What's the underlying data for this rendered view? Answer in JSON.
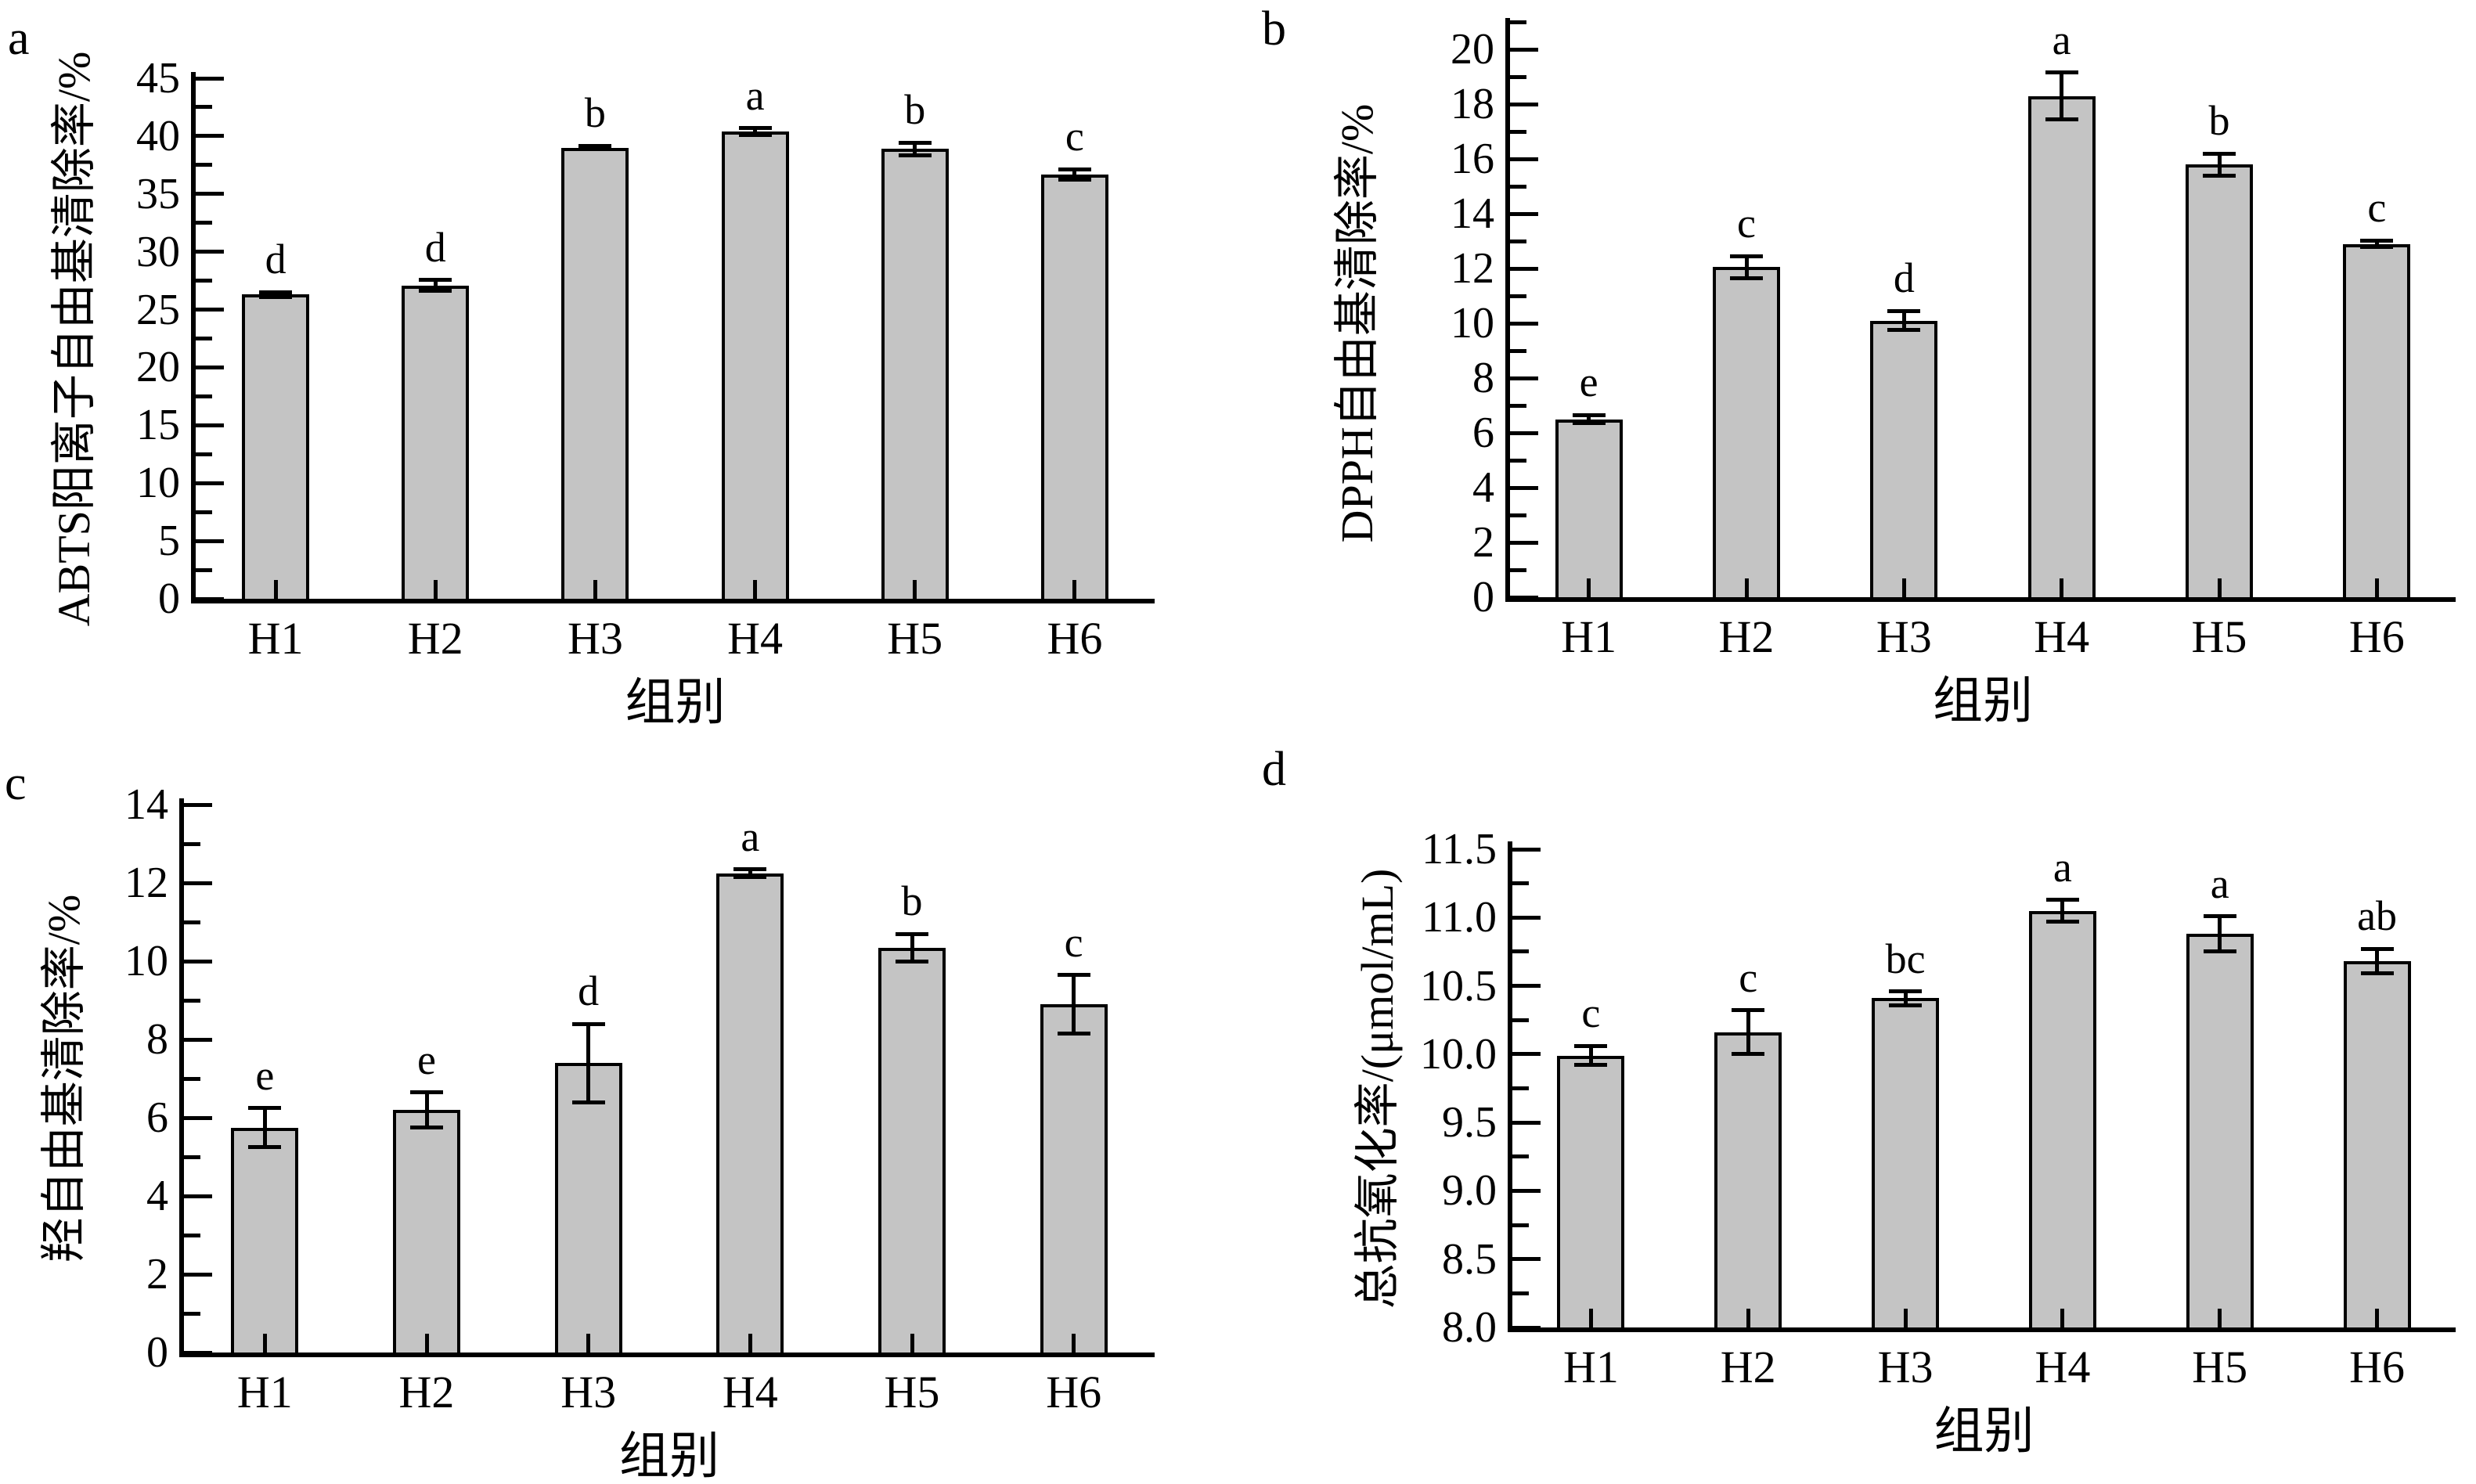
{
  "figure": {
    "background": "#ffffff",
    "bar_fill": "#c4c4c4",
    "bar_border": "#000000",
    "axis_color": "#000000"
  },
  "chart_data": [
    {
      "panel_label": "a",
      "type": "bar",
      "categories": [
        "H1",
        "H2",
        "H3",
        "H4",
        "H5",
        "H6"
      ],
      "values": [
        26.3,
        27.1,
        39.0,
        40.4,
        38.9,
        36.7
      ],
      "errors": [
        0.2,
        0.45,
        0.15,
        0.3,
        0.55,
        0.45
      ],
      "sig_letters": [
        "d",
        "d",
        "b",
        "a",
        "b",
        "c"
      ],
      "title": "",
      "xlabel": "组别",
      "ylabel": "ABTS阳离子自由基清除率/%",
      "ylim": [
        0,
        45
      ],
      "ytick_values": [
        0,
        5,
        10,
        15,
        20,
        25,
        30,
        35,
        40,
        45
      ],
      "ytick_labels": [
        "0",
        "5",
        "10",
        "15",
        "20",
        "25",
        "30",
        "35",
        "40",
        "45"
      ],
      "ytick_minor_step": 2.5,
      "grid": false,
      "legend": "none"
    },
    {
      "panel_label": "b",
      "type": "bar",
      "categories": [
        "H1",
        "H2",
        "H3",
        "H4",
        "H5",
        "H6"
      ],
      "values": [
        6.5,
        12.05,
        10.1,
        18.3,
        15.8,
        12.9
      ],
      "errors": [
        0.15,
        0.4,
        0.35,
        0.85,
        0.4,
        0.12
      ],
      "sig_letters": [
        "e",
        "c",
        "d",
        "a",
        "b",
        "c"
      ],
      "title": "",
      "xlabel": "组别",
      "ylabel": "DPPH自由基清除率/%",
      "ylim": [
        0,
        20
      ],
      "ytick_values": [
        0,
        2,
        4,
        6,
        8,
        10,
        12,
        14,
        16,
        18,
        20
      ],
      "ytick_labels": [
        "0",
        "2",
        "4",
        "6",
        "8",
        "10",
        "12",
        "14",
        "16",
        "18",
        "20"
      ],
      "ytick_minor_step": 1,
      "grid": false,
      "legend": "none"
    },
    {
      "panel_label": "c",
      "type": "bar",
      "categories": [
        "H1",
        "H2",
        "H3",
        "H4",
        "H5",
        "H6"
      ],
      "values": [
        5.75,
        6.2,
        7.4,
        12.25,
        10.35,
        8.9
      ],
      "errors": [
        0.5,
        0.45,
        1.0,
        0.1,
        0.35,
        0.75
      ],
      "sig_letters": [
        "e",
        "e",
        "d",
        "a",
        "b",
        "c"
      ],
      "title": "",
      "xlabel": "组别",
      "ylabel": "羟自由基清除率/%",
      "ylim": [
        0,
        14
      ],
      "ytick_values": [
        0,
        2,
        4,
        6,
        8,
        10,
        12,
        14
      ],
      "ytick_labels": [
        "0",
        "2",
        "4",
        "6",
        "8",
        "10",
        "12",
        "14"
      ],
      "ytick_minor_step": 1,
      "grid": false,
      "legend": "none"
    },
    {
      "panel_label": "d",
      "type": "bar",
      "categories": [
        "H1",
        "H2",
        "H3",
        "H4",
        "H5",
        "H6"
      ],
      "values": [
        9.99,
        10.16,
        10.41,
        11.05,
        10.88,
        10.68
      ],
      "errors": [
        0.07,
        0.16,
        0.05,
        0.08,
        0.13,
        0.09
      ],
      "sig_letters": [
        "c",
        "c",
        "bc",
        "a",
        "a",
        "ab"
      ],
      "title": "",
      "xlabel": "组别",
      "ylabel": "总抗氧化率/(μmol/mL)",
      "ylim": [
        8.0,
        11.5
      ],
      "ytick_values": [
        8.0,
        8.5,
        9.0,
        9.5,
        10.0,
        10.5,
        11.0,
        11.5
      ],
      "ytick_labels": [
        "8.0",
        "8.5",
        "9.0",
        "9.5",
        "10.0",
        "10.5",
        "11.0",
        "11.5"
      ],
      "ytick_minor_step": 0.25,
      "grid": false,
      "legend": "none"
    }
  ]
}
